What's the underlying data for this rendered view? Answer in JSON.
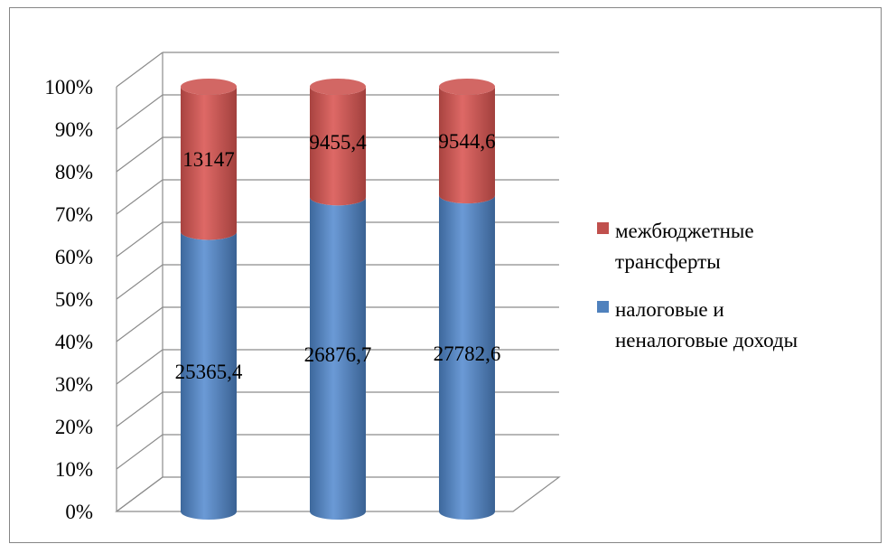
{
  "chart_data": {
    "type": "bar",
    "stacked": "percent",
    "style": "3d-cylinder",
    "categories": [
      "",
      "",
      ""
    ],
    "series": [
      {
        "name": "налоговые и неналоговые доходы",
        "values": [
          25365.4,
          26876.7,
          27782.6
        ],
        "labels": [
          "25365,4",
          "26876,7",
          "27782,6"
        ],
        "color": "#4F81BD"
      },
      {
        "name": "межбюджетные трансферты",
        "values": [
          13147,
          9455.4,
          9544.6
        ],
        "labels": [
          "13147",
          "9455,4",
          "9544,6"
        ],
        "color": "#C0504D"
      }
    ],
    "yticks": [
      "0%",
      "10%",
      "20%",
      "30%",
      "40%",
      "50%",
      "60%",
      "70%",
      "80%",
      "90%",
      "100%"
    ],
    "ylim": [
      0,
      100
    ],
    "grid": true,
    "legend_position": "right",
    "legend": [
      {
        "lines": [
          "межбюджетные",
          "трансферты"
        ],
        "color": "#C0504D"
      },
      {
        "lines": [
          "налоговые и",
          "неналоговые доходы"
        ],
        "color": "#4F81BD"
      }
    ],
    "title": "",
    "xlabel": "",
    "ylabel": ""
  }
}
